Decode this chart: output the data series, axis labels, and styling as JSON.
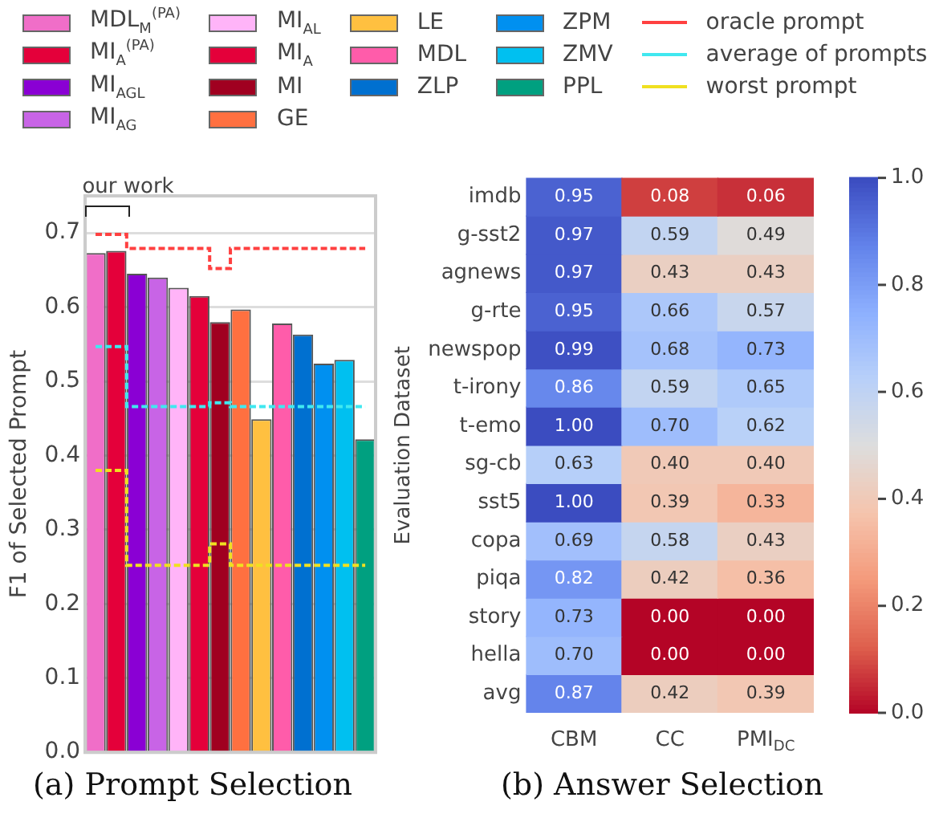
{
  "chart_data": [
    {
      "type": "bar",
      "title": "(a) Prompt Selection",
      "ylabel": "F1 of Selected Prompt",
      "categories": [
        null,
        null,
        null,
        null,
        null,
        null,
        null,
        null,
        null,
        null,
        null,
        null,
        null,
        null
      ],
      "series": [
        {
          "name": "MDL$_{M}$$^{(PA)}$",
          "color": "#f06ec8",
          "values": [
            0.673,
            null,
            null,
            null,
            null,
            null,
            null,
            null,
            null,
            null,
            null,
            null,
            null,
            null
          ]
        },
        {
          "name": "MI$_{A}$$^{(PA)}$",
          "color": "#e4003a",
          "values": [
            null,
            0.676,
            null,
            null,
            null,
            null,
            null,
            null,
            null,
            null,
            null,
            null,
            null,
            null
          ]
        },
        {
          "name": "MI$_{AGL}$",
          "color": "#8a00d4",
          "values": [
            null,
            null,
            0.645,
            null,
            null,
            null,
            null,
            null,
            null,
            null,
            null,
            null,
            null,
            null
          ]
        },
        {
          "name": "MI$_{AG}$",
          "color": "#c864e6",
          "values": [
            null,
            null,
            null,
            0.64,
            null,
            null,
            null,
            null,
            null,
            null,
            null,
            null,
            null,
            null
          ]
        },
        {
          "name": "MI$_{AL}$",
          "color": "#ffb4f8",
          "values": [
            null,
            null,
            null,
            null,
            0.626,
            null,
            null,
            null,
            null,
            null,
            null,
            null,
            null,
            null
          ]
        },
        {
          "name": "MI$_{A}$",
          "color": "#e4003a",
          "values": [
            null,
            null,
            null,
            null,
            null,
            0.615,
            null,
            null,
            null,
            null,
            null,
            null,
            null,
            null
          ]
        },
        {
          "name": "MI",
          "color": "#a00020",
          "values": [
            null,
            null,
            null,
            null,
            null,
            null,
            0.58,
            null,
            null,
            null,
            null,
            null,
            null,
            null
          ]
        },
        {
          "name": "GE",
          "color": "#ff7040",
          "values": [
            null,
            null,
            null,
            null,
            null,
            null,
            null,
            0.597,
            null,
            null,
            null,
            null,
            null,
            null
          ]
        },
        {
          "name": "LE",
          "color": "#ffc040",
          "values": [
            null,
            null,
            null,
            null,
            null,
            null,
            null,
            null,
            0.449,
            null,
            null,
            null,
            null,
            null
          ]
        },
        {
          "name": "MDL",
          "color": "#ff5caa",
          "values": [
            null,
            null,
            null,
            null,
            null,
            null,
            null,
            null,
            null,
            0.578,
            null,
            null,
            null,
            null
          ]
        },
        {
          "name": "ZLP",
          "color": "#0070d0",
          "values": [
            null,
            null,
            null,
            null,
            null,
            null,
            null,
            null,
            null,
            null,
            0.563,
            null,
            null,
            null
          ]
        },
        {
          "name": "ZPM",
          "color": "#0090f0",
          "values": [
            null,
            null,
            null,
            null,
            null,
            null,
            null,
            null,
            null,
            null,
            null,
            0.524,
            null,
            null
          ]
        },
        {
          "name": "ZMV",
          "color": "#00c0f0",
          "values": [
            null,
            null,
            null,
            null,
            null,
            null,
            null,
            null,
            null,
            null,
            null,
            null,
            0.529,
            null
          ]
        },
        {
          "name": "PPL",
          "color": "#00a080",
          "values": [
            null,
            null,
            null,
            null,
            null,
            null,
            null,
            null,
            null,
            null,
            null,
            null,
            null,
            0.422
          ]
        },
        {
          "name": "oracle prompt",
          "type": "step",
          "line_style": "dashed",
          "color": "#ff4040",
          "values": [
            0.698,
            0.698,
            0.679,
            0.679,
            0.679,
            0.679,
            0.652,
            0.679,
            0.679,
            0.679,
            0.679,
            0.679,
            0.679,
            0.679
          ]
        },
        {
          "name": "average of prompts",
          "type": "step",
          "line_style": "dashed",
          "color": "#40e8f0",
          "values": [
            0.547,
            0.547,
            0.466,
            0.466,
            0.466,
            0.466,
            0.471,
            0.466,
            0.466,
            0.466,
            0.466,
            0.466,
            0.466,
            0.466
          ]
        },
        {
          "name": "worst prompt",
          "type": "step",
          "line_style": "dashed",
          "color": "#f0e020",
          "values": [
            0.38,
            0.38,
            0.252,
            0.252,
            0.252,
            0.252,
            0.281,
            0.252,
            0.252,
            0.252,
            0.252,
            0.252,
            0.252,
            0.252
          ]
        }
      ],
      "ylim": [
        0,
        0.75
      ],
      "yticks": [
        {
          "value": 0,
          "label": "0.0"
        },
        {
          "value": 0.1,
          "label": "0.1"
        },
        {
          "value": 0.2,
          "label": "0.2"
        },
        {
          "value": 0.3,
          "label": "0.3"
        },
        {
          "value": 0.4,
          "label": "0.4"
        },
        {
          "value": 0.5,
          "label": "0.5"
        },
        {
          "value": 0.6,
          "label": "0.6"
        },
        {
          "value": 0.7,
          "label": "0.7"
        }
      ],
      "grid": "y",
      "legend": "top",
      "tick_labels": "y",
      "annotations": [
        "our work"
      ]
    },
    {
      "type": "heatmap",
      "title": "(b) Answer Selection",
      "ylabel": "Evaluation Dataset",
      "categories": [
        "CBM",
        "CC",
        "PMI$_{DC}$"
      ],
      "y_categories": [
        "imdb",
        "g-sst2",
        "agnews",
        "g-rte",
        "newspop",
        "t-irony",
        "t-emo",
        "sg-cb",
        "sst5",
        "copa",
        "piqa",
        "story",
        "hella",
        "avg"
      ],
      "cells": [
        [
          0.95,
          0.08,
          0.06
        ],
        [
          0.97,
          0.59,
          0.49
        ],
        [
          0.97,
          0.43,
          0.43
        ],
        [
          0.95,
          0.66,
          0.57
        ],
        [
          0.99,
          0.68,
          0.73
        ],
        [
          0.86,
          0.59,
          0.65
        ],
        [
          1.0,
          0.7,
          0.62
        ],
        [
          0.63,
          0.4,
          0.4
        ],
        [
          1.0,
          0.39,
          0.33
        ],
        [
          0.69,
          0.58,
          0.43
        ],
        [
          0.82,
          0.42,
          0.36
        ],
        [
          0.73,
          0.0,
          0.0
        ],
        [
          0.7,
          0.0,
          0.0
        ],
        [
          0.87,
          0.42,
          0.39
        ]
      ],
      "cell_labels": [
        [
          "0.95",
          "0.08",
          "0.06"
        ],
        [
          "0.97",
          "0.59",
          "0.49"
        ],
        [
          "0.97",
          "0.43",
          "0.43"
        ],
        [
          "0.95",
          "0.66",
          "0.57"
        ],
        [
          "0.99",
          "0.68",
          "0.73"
        ],
        [
          "0.86",
          "0.59",
          "0.65"
        ],
        [
          "1.00",
          "0.70",
          "0.62"
        ],
        [
          "0.63",
          "0.40",
          "0.40"
        ],
        [
          "1.00",
          "0.39",
          "0.33"
        ],
        [
          "0.69",
          "0.58",
          "0.43"
        ],
        [
          "0.82",
          "0.42",
          "0.36"
        ],
        [
          "0.73",
          "0.00",
          "0.00"
        ],
        [
          "0.70",
          "0.00",
          "0.00"
        ],
        [
          "0.87",
          "0.42",
          "0.39"
        ]
      ],
      "clim": [
        0,
        1
      ],
      "cticks": [
        {
          "value": 0,
          "label": "0.0"
        },
        {
          "value": 0.2,
          "label": "0.2"
        },
        {
          "value": 0.4,
          "label": "0.4"
        },
        {
          "value": 0.6,
          "label": "0.6"
        },
        {
          "value": 0.8,
          "label": "0.8"
        },
        {
          "value": 1,
          "label": "1.0"
        }
      ]
    }
  ]
}
